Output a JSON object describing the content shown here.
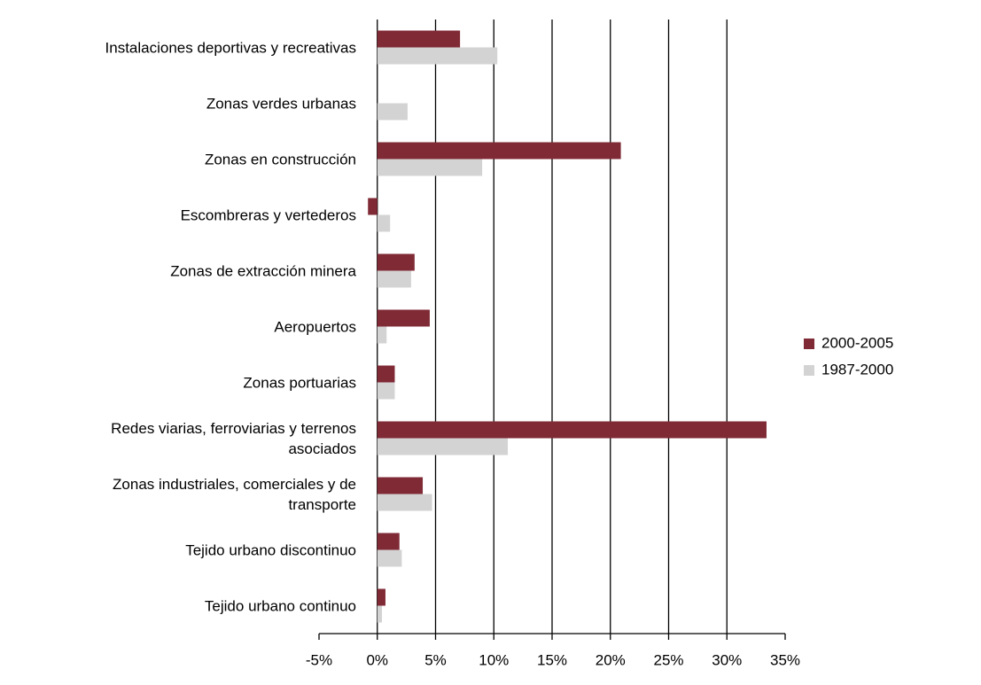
{
  "chart_data": {
    "type": "hbar",
    "categories": [
      "Instalaciones deportivas y recreativas",
      "Zonas verdes urbanas",
      "Zonas en construcción",
      "Escombreras y vertederos",
      "Zonas de extracción minera",
      "Aeropuertos",
      "Zonas portuarias",
      "Redes viarias, ferroviarias y terrenos asociados",
      "Zonas industriales, comerciales y de transporte",
      "Tejido urbano discontinuo",
      "Tejido urbano continuo"
    ],
    "series": [
      {
        "name": "2000-2005",
        "color": "#7f2a35",
        "values": [
          7.1,
          0,
          20.9,
          -0.8,
          3.2,
          4.5,
          1.5,
          33.4,
          3.9,
          1.9,
          0.7
        ]
      },
      {
        "name": "1987-2000",
        "color": "#d3d3d3",
        "values": [
          10.3,
          2.6,
          9.0,
          1.1,
          2.9,
          0.8,
          1.5,
          11.2,
          4.7,
          2.1,
          0.4
        ]
      }
    ],
    "xlim": [
      -5,
      35
    ],
    "xticks": [
      {
        "value": -5,
        "label": "-5%"
      },
      {
        "value": 0,
        "label": "0%"
      },
      {
        "value": 5,
        "label": "5%"
      },
      {
        "value": 10,
        "label": "10%"
      },
      {
        "value": 15,
        "label": "15%"
      },
      {
        "value": 20,
        "label": "20%"
      },
      {
        "value": 25,
        "label": "25%"
      },
      {
        "value": 30,
        "label": "30%"
      },
      {
        "value": 35,
        "label": "35%"
      }
    ],
    "grid": true,
    "legend": "right"
  }
}
